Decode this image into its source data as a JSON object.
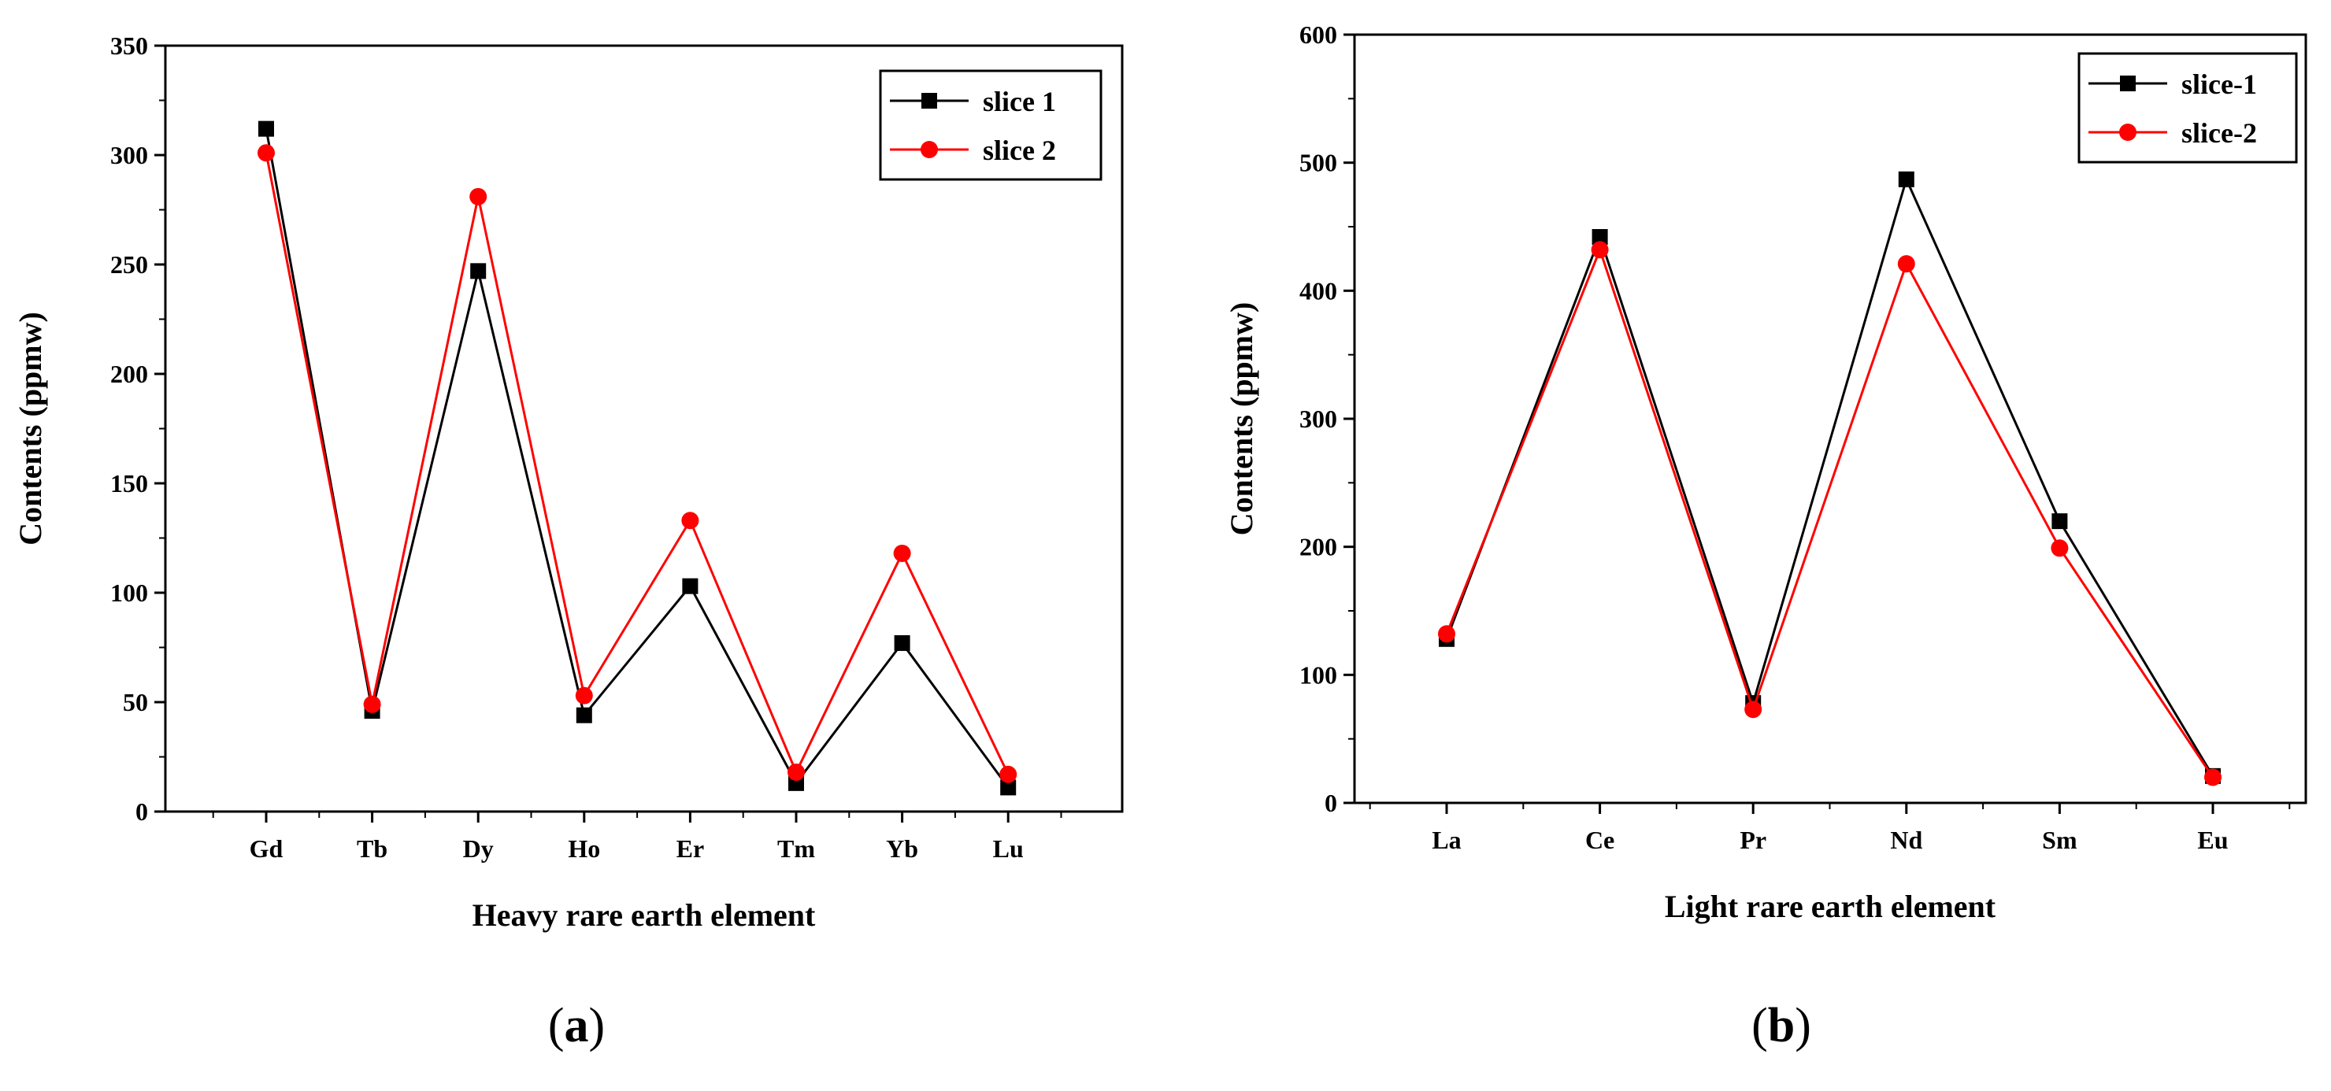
{
  "chart_data": [
    {
      "type": "line",
      "categories": [
        "Gd",
        "Tb",
        "Dy",
        "Ho",
        "Er",
        "Tm",
        "Yb",
        "Lu"
      ],
      "series": [
        {
          "name": "slice 1",
          "values": [
            312,
            46,
            247,
            44,
            103,
            13,
            77,
            11
          ],
          "color": "#000000",
          "marker": "square"
        },
        {
          "name": "slice 2",
          "values": [
            301,
            49,
            281,
            53,
            133,
            18,
            118,
            17
          ],
          "color": "#ff0000",
          "marker": "circle"
        }
      ],
      "xlabel": "Heavy rare earth element",
      "ylabel": "Contents (ppmw)",
      "ylim": [
        0,
        350
      ],
      "yticks": [
        "0",
        "50",
        "100",
        "150",
        "200",
        "250",
        "300",
        "350"
      ],
      "grid": false,
      "legend_position": "top-right",
      "caption": {
        "open": "(",
        "letter": "a",
        "close": ")"
      }
    },
    {
      "type": "line",
      "categories": [
        "La",
        "Ce",
        "Pr",
        "Nd",
        "Sm",
        "Eu"
      ],
      "series": [
        {
          "name": "slice-1",
          "values": [
            128,
            442,
            78,
            487,
            220,
            21
          ],
          "color": "#000000",
          "marker": "square"
        },
        {
          "name": "slice-2",
          "values": [
            132,
            432,
            73,
            421,
            199,
            20
          ],
          "color": "#ff0000",
          "marker": "circle"
        }
      ],
      "xlabel": "Light rare earth element",
      "ylabel": "Contents (ppmw)",
      "ylim": [
        0,
        600
      ],
      "yticks": [
        "0",
        "100",
        "200",
        "300",
        "400",
        "500",
        "600"
      ],
      "grid": false,
      "legend_position": "top-right",
      "caption": {
        "open": "(",
        "letter": "b",
        "close": ")"
      }
    }
  ]
}
